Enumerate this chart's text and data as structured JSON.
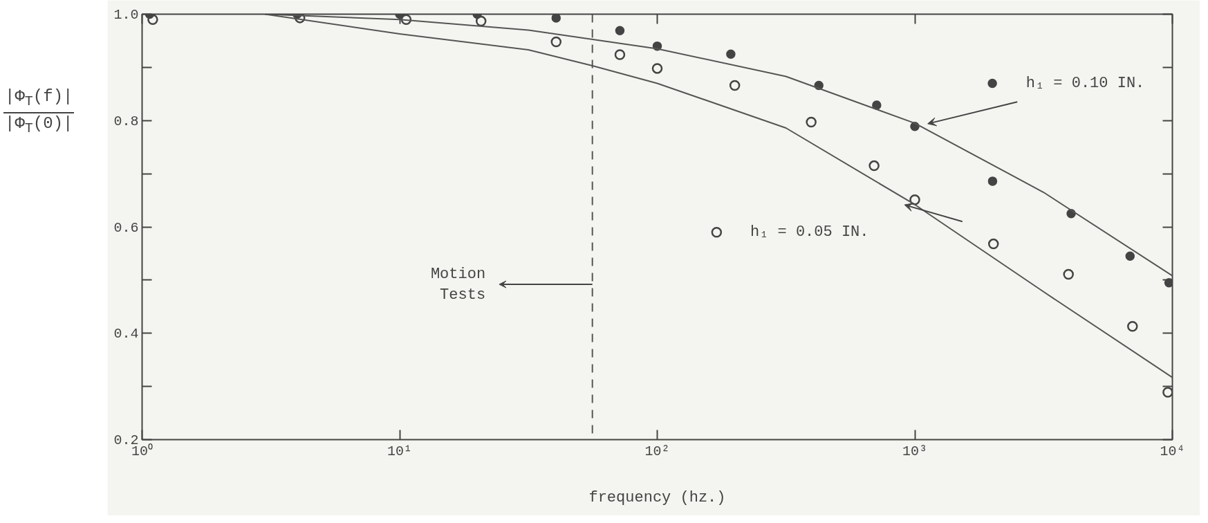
{
  "chart_data": {
    "type": "scatter",
    "xlabel": "frequency (hz.)",
    "ylabel": "|Φ$_{T}$(f)|\n|Φ$_{T}$(0)|",
    "log": "x",
    "grid": false,
    "legend": "right",
    "xlim": [
      1,
      10000
    ],
    "ylim": [
      0.2,
      1.0
    ],
    "xticks": [
      {
        "value": 1,
        "label": "10⁰"
      },
      {
        "value": 10,
        "label": "10¹"
      },
      {
        "value": 100,
        "label": "10²"
      },
      {
        "value": 1000,
        "label": "10³"
      },
      {
        "value": 10000,
        "label": "10⁴"
      }
    ],
    "yticks": [
      {
        "value": 0.2,
        "label": "0.2"
      },
      {
        "value": 0.3,
        "label": null
      },
      {
        "value": 0.4,
        "label": "0.4"
      },
      {
        "value": 0.5,
        "label": null
      },
      {
        "value": 0.6,
        "label": "0.6"
      },
      {
        "value": 0.7,
        "label": null
      },
      {
        "value": 0.8,
        "label": "0.8"
      },
      {
        "value": 0.9,
        "label": null
      },
      {
        "value": 1.0,
        "label": "1.0"
      }
    ],
    "series": [
      {
        "name": "h₁ = 0.10 IN.",
        "marker": "circle",
        "color": "#444444",
        "x": [
          1.07,
          4,
          10,
          20,
          40.5,
          71.6,
          100,
          193,
          424,
          711,
          1000,
          2004,
          4045,
          6850,
          9700
        ],
        "values": [
          1.0,
          1.0,
          1.0,
          1.0,
          0.993,
          0.969,
          0.94,
          0.925,
          0.866,
          0.829,
          0.789,
          0.686,
          0.625,
          0.545,
          0.495
        ]
      },
      {
        "name": "h₁ = 0.05 IN.",
        "marker": "circle",
        "color": "#444444",
        "x": [
          1.1,
          4.1,
          10.6,
          20.7,
          40.5,
          71.6,
          100,
          200,
          396,
          695,
          1000,
          2020,
          3950,
          7000,
          9600
        ],
        "values": [
          0.99,
          0.993,
          0.99,
          0.987,
          0.948,
          0.924,
          0.898,
          0.866,
          0.797,
          0.715,
          0.651,
          0.568,
          0.511,
          0.413,
          0.289
        ]
      },
      {
        "type": "line",
        "color": "#555555",
        "line_style": "solid",
        "x": [
          3,
          10,
          31.6,
          100,
          316,
          1000,
          3162,
          10000
        ],
        "values": [
          1.0,
          0.99,
          0.97,
          0.935,
          0.883,
          0.795,
          0.665,
          0.508
        ]
      },
      {
        "type": "line",
        "color": "#555555",
        "line_style": "solid",
        "x": [
          3,
          10,
          31.6,
          56,
          100,
          316,
          1000,
          3162,
          10000
        ],
        "values": [
          1.0,
          0.963,
          0.933,
          0.903,
          0.87,
          0.786,
          0.642,
          0.478,
          0.317
        ]
      }
    ],
    "ref_lines": [
      {
        "axis": "x",
        "value": 56,
        "label": "Motion Tests",
        "color": "#555555",
        "line_style": "dashed"
      }
    ]
  }
}
